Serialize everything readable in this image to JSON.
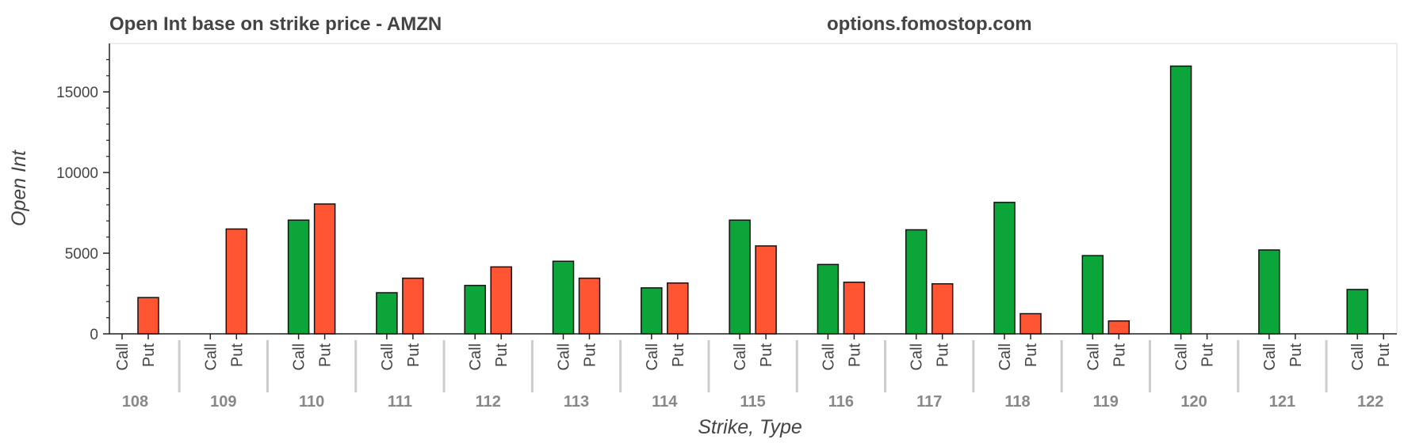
{
  "colors": {
    "call": "#0ba53a",
    "put": "#ff5533",
    "bar_outline": "#111111",
    "separator": "#cccccc",
    "frame": "#e6e6e6",
    "axis": "#222222",
    "text": "#444444",
    "group_text": "#888888"
  },
  "chart_data": {
    "type": "bar",
    "title": "Open Int base on strike price - AMZN",
    "watermark": "options.fomostop.com",
    "xlabel": "Strike, Type",
    "ylabel": "Open Int",
    "ylim": [
      0,
      18000
    ],
    "yticks": [
      "0",
      "5000",
      "10000",
      "15000"
    ],
    "subcategories": [
      "Call",
      "Put"
    ],
    "groups": [
      "108",
      "109",
      "110",
      "111",
      "112",
      "113",
      "114",
      "115",
      "116",
      "117",
      "118",
      "119",
      "120",
      "121",
      "122"
    ],
    "series": [
      {
        "name": "Call",
        "values": [
          0,
          0,
          7050,
          2550,
          3000,
          4500,
          2850,
          7050,
          4300,
          6450,
          8150,
          4850,
          16600,
          5200,
          2750
        ]
      },
      {
        "name": "Put",
        "values": [
          2250,
          6500,
          8050,
          3450,
          4150,
          3450,
          3150,
          5450,
          3200,
          3100,
          1250,
          800,
          0,
          0,
          0
        ]
      }
    ],
    "grid": false,
    "legend": "none"
  }
}
